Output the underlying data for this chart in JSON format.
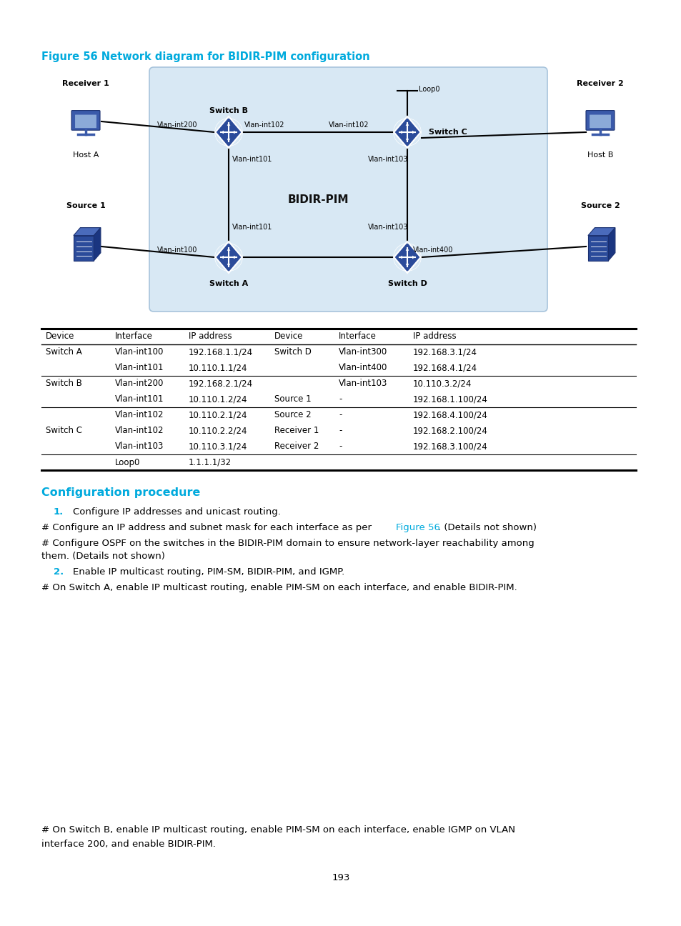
{
  "title": "Figure 56 Network diagram for BIDIR-PIM configuration",
  "title_color": "#00AADD",
  "bg_color": "#FFFFFF",
  "diagram_bg_color": "#D8E8F4",
  "diagram_border_color": "#A8C4DC",
  "switch_color": "#2B4B9A",
  "host_color": "#3A5AAA",
  "line_color": "#000000",
  "cyan_color": "#00AADD",
  "config_header": "Configuration procedure",
  "config_header_color": "#00AADD",
  "table_headers": [
    "Device",
    "Interface",
    "IP address",
    "Device",
    "Interface",
    "IP address"
  ],
  "table_rows": [
    [
      "Switch A",
      "Vlan-int100",
      "192.168.1.1/24",
      "Switch D",
      "Vlan-int300",
      "192.168.3.1/24"
    ],
    [
      "",
      "Vlan-int101",
      "10.110.1.1/24",
      "",
      "Vlan-int400",
      "192.168.4.1/24"
    ],
    [
      "Switch B",
      "Vlan-int200",
      "192.168.2.1/24",
      "",
      "Vlan-int103",
      "10.110.3.2/24"
    ],
    [
      "",
      "Vlan-int101",
      "10.110.1.2/24",
      "Source 1",
      "-",
      "192.168.1.100/24"
    ],
    [
      "",
      "Vlan-int102",
      "10.110.2.1/24",
      "Source 2",
      "-",
      "192.168.4.100/24"
    ],
    [
      "Switch C",
      "Vlan-int102",
      "10.110.2.2/24",
      "Receiver 1",
      "-",
      "192.168.2.100/24"
    ],
    [
      "",
      "Vlan-int103",
      "10.110.3.1/24",
      "Receiver 2",
      "-",
      "192.168.3.100/24"
    ],
    [
      "",
      "Loop0",
      "1.1.1.1/32",
      "",
      "",
      ""
    ]
  ],
  "divider_after_rows": [
    1,
    3,
    6
  ],
  "page_number": "193"
}
